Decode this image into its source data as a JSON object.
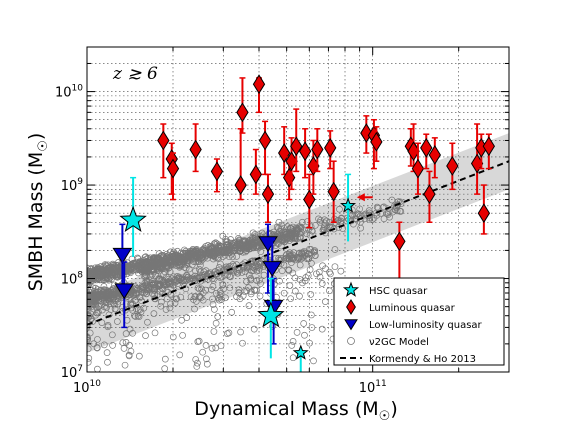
{
  "chart_data": {
    "type": "scatter",
    "xscale": "log",
    "yscale": "log",
    "xlim": [
      10000000000,
      300000000000
    ],
    "ylim": [
      10000000,
      30000000000
    ],
    "xlabel": "Dynamical Mass (M",
    "xlabel_sub": "☉",
    "xlabel_end": ")",
    "ylabel": "SMBH Mass (M",
    "ylabel_sub": "☉",
    "ylabel_end": ")",
    "x_tick_labels": [
      {
        "value": 10000000000,
        "base": "10",
        "exp": "10"
      },
      {
        "value": 100000000000,
        "base": "10",
        "exp": "11"
      }
    ],
    "y_tick_labels": [
      {
        "value": 10000000,
        "base": "10",
        "exp": "7"
      },
      {
        "value": 100000000,
        "base": "10",
        "exp": "8"
      },
      {
        "value": 1000000000,
        "base": "10",
        "exp": "9"
      },
      {
        "value": 10000000000,
        "base": "10",
        "exp": "10"
      }
    ],
    "annotation": "z ≳ 6",
    "grid": true,
    "legend_position": "lower right",
    "relation": {
      "name": "Kormendy & Ho 2013",
      "points": [
        [
          10000000000,
          32000000
        ],
        [
          300000000000,
          1800000000
        ]
      ],
      "band_dex": 0.3,
      "color": "#000000",
      "band_color": "#d8d8d8"
    },
    "series": [
      {
        "name": "HSC quasar",
        "marker": "star",
        "color": "#00e5e5",
        "points": [
          {
            "x": 14500000000,
            "y": 420000000,
            "ylo": 170000000,
            "yhi": 1200000000
          },
          {
            "x": 44000000000,
            "y": 40000000,
            "ylo": 14000000,
            "yhi": 100000000
          },
          {
            "x": 56000000000,
            "y": 16000000,
            "ylo": 10000000,
            "yhi": 16000000
          },
          {
            "x": 82000000000,
            "y": 600000000,
            "ylo": 250000000,
            "yhi": 1300000000
          }
        ]
      },
      {
        "name": "Luminous quasar",
        "marker": "diamond",
        "color": "#e60000",
        "points": [
          {
            "x": 18500000000,
            "y": 3000000000,
            "ylo": 1200000000,
            "yhi": 4500000000
          },
          {
            "x": 19800000000,
            "y": 1900000000,
            "ylo": 800000000,
            "yhi": 2800000000
          },
          {
            "x": 20000000000,
            "y": 1500000000,
            "ylo": 700000000,
            "yhi": 2200000000
          },
          {
            "x": 24000000000,
            "y": 2400000000,
            "ylo": 1400000000,
            "yhi": 4500000000
          },
          {
            "x": 28500000000,
            "y": 1400000000,
            "ylo": 850000000,
            "yhi": 1900000000
          },
          {
            "x": 35000000000,
            "y": 6000000000,
            "ylo": 3600000000,
            "yhi": 14000000000
          },
          {
            "x": 34500000000,
            "y": 1000000000,
            "ylo": 700000000,
            "yhi": 4000000000
          },
          {
            "x": 39000000000,
            "y": 1300000000,
            "ylo": 800000000,
            "yhi": 2400000000
          },
          {
            "x": 40000000000,
            "y": 12000000000,
            "ylo": 6000000000,
            "yhi": 14000000000
          },
          {
            "x": 42000000000,
            "y": 3000000000,
            "ylo": 1300000000,
            "yhi": 4800000000
          },
          {
            "x": 43000000000,
            "y": 800000000,
            "ylo": 400000000,
            "yhi": 1300000000
          },
          {
            "x": 49000000000,
            "y": 2200000000,
            "ylo": 1300000000,
            "yhi": 4200000000
          },
          {
            "x": 51000000000,
            "y": 1200000000,
            "ylo": 700000000,
            "yhi": 2000000000
          },
          {
            "x": 52000000000,
            "y": 1800000000,
            "ylo": 900000000,
            "yhi": 3200000000
          },
          {
            "x": 54000000000,
            "y": 2600000000,
            "ylo": 1400000000,
            "yhi": 6500000000
          },
          {
            "x": 58000000000,
            "y": 2300000000,
            "ylo": 1200000000,
            "yhi": 4000000000
          },
          {
            "x": 60000000000,
            "y": 700000000,
            "ylo": 350000000,
            "yhi": 1300000000
          },
          {
            "x": 62000000000,
            "y": 1600000000,
            "ylo": 800000000,
            "yhi": 3000000000
          },
          {
            "x": 64000000000,
            "y": 2400000000,
            "ylo": 1400000000,
            "yhi": 4000000000
          },
          {
            "x": 71000000000,
            "y": 2500000000,
            "ylo": 1500000000,
            "yhi": 3800000000
          },
          {
            "x": 73000000000,
            "y": 850000000,
            "ylo": 400000000,
            "yhi": 1800000000
          },
          {
            "x": 95000000000,
            "y": 3600000000,
            "ylo": 2200000000,
            "yhi": 5500000000
          },
          {
            "x": 101000000000,
            "y": 3400000000,
            "ylo": 1500000000,
            "yhi": 5000000000
          },
          {
            "x": 103000000000,
            "y": 2900000000,
            "ylo": 1800000000,
            "yhi": 4200000000
          },
          {
            "x": 124000000000,
            "y": 250000000,
            "ylo": 100000000,
            "yhi": 400000000
          },
          {
            "x": 136000000000,
            "y": 2600000000,
            "ylo": 1600000000,
            "yhi": 4000000000
          },
          {
            "x": 139000000000,
            "y": 2300000000,
            "ylo": 1400000000,
            "yhi": 4500000000
          },
          {
            "x": 144000000000,
            "y": 1500000000,
            "ylo": 800000000,
            "yhi": 2800000000
          },
          {
            "x": 154000000000,
            "y": 2500000000,
            "ylo": 1500000000,
            "yhi": 3500000000
          },
          {
            "x": 158000000000,
            "y": 800000000,
            "ylo": 400000000,
            "yhi": 1400000000
          },
          {
            "x": 165000000000,
            "y": 2100000000,
            "ylo": 1200000000,
            "yhi": 3200000000
          },
          {
            "x": 190000000000,
            "y": 1600000000,
            "ylo": 900000000,
            "yhi": 2800000000
          },
          {
            "x": 232000000000,
            "y": 1700000000,
            "ylo": 800000000,
            "yhi": 4500000000
          },
          {
            "x": 240000000000,
            "y": 2500000000,
            "ylo": 1500000000,
            "yhi": 3500000000
          },
          {
            "x": 245000000000,
            "y": 500000000,
            "ylo": 300000000,
            "yhi": 1000000000
          },
          {
            "x": 255000000000,
            "y": 2600000000,
            "ylo": 1500000000,
            "yhi": 3500000000
          }
        ],
        "upper_limits": [
          {
            "x": 100000000000,
            "y": 740000000,
            "to_x": 88000000000
          }
        ]
      },
      {
        "name": "Low-luminosity quasar",
        "marker": "triangle-down",
        "color": "#0000c8",
        "points": [
          {
            "x": 13300000000,
            "y": 180000000,
            "ylo": 80000000,
            "yhi": 380000000
          },
          {
            "x": 13500000000,
            "y": 75000000,
            "ylo": 30000000,
            "yhi": 150000000
          },
          {
            "x": 43000000000,
            "y": 240000000,
            "ylo": 70000000,
            "yhi": 380000000
          },
          {
            "x": 44500000000,
            "y": 130000000,
            "ylo": 40000000,
            "yhi": 260000000
          },
          {
            "x": 45000000000,
            "y": 50000000,
            "ylo": 20000000,
            "yhi": 100000000
          }
        ]
      },
      {
        "name": "ν2GC Model",
        "marker": "open-circle",
        "color": "#777777"
      }
    ],
    "legend": [
      {
        "label": "HSC quasar",
        "marker": "star",
        "color": "#00e5e5"
      },
      {
        "label": "Luminous quasar",
        "marker": "diamond",
        "color": "#e60000"
      },
      {
        "label": "Low-luminosity quasar",
        "marker": "triangle-down",
        "color": "#0000c8"
      },
      {
        "label": "ν2GC Model",
        "marker": "open-circle",
        "color": "#777777"
      },
      {
        "label": "Kormendy & Ho 2013",
        "marker": "dashed-line",
        "color": "#000000"
      }
    ]
  }
}
